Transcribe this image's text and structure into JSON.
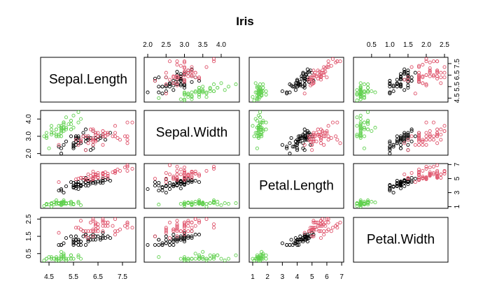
{
  "chart_data": {
    "type": "scatter",
    "title": "Iris",
    "variables": [
      "Sepal.Length",
      "Sepal.Width",
      "Petal.Length",
      "Petal.Width"
    ],
    "ranges": [
      [
        4.3,
        7.9
      ],
      [
        2.0,
        4.4
      ],
      [
        1.0,
        6.9
      ],
      [
        0.1,
        2.5
      ]
    ],
    "ticks": [
      [
        "4.5",
        "5.5",
        "6.5",
        "7.5"
      ],
      [
        "2.0",
        "2.5",
        "3.0",
        "3.5",
        "4.0"
      ],
      [
        "1",
        "2",
        "3",
        "4",
        "5",
        "6",
        "7"
      ],
      [
        "0.5",
        "1.0",
        "1.5",
        "2.0",
        "2.5"
      ]
    ],
    "left_ticks": [
      [
        "2.0",
        "3.0",
        "4.0"
      ],
      [
        "0.5",
        "1.5",
        "2.5"
      ]
    ],
    "right_ticks": [
      [
        "4.5",
        "5.5",
        "6.5",
        "7.5"
      ],
      [
        "1",
        "3",
        "5",
        "7"
      ]
    ],
    "series_colors": [
      "#000000",
      "#DF536B",
      "#61D04F"
    ],
    "series": [
      {
        "values": [
          [
            7.0,
            3.2,
            4.7,
            1.4
          ],
          [
            6.4,
            3.2,
            4.5,
            1.5
          ],
          [
            6.9,
            3.1,
            4.9,
            1.5
          ],
          [
            5.5,
            2.3,
            4.0,
            1.3
          ],
          [
            6.5,
            2.8,
            4.6,
            1.5
          ],
          [
            5.7,
            2.8,
            4.5,
            1.3
          ],
          [
            6.3,
            3.3,
            4.7,
            1.6
          ],
          [
            4.9,
            2.4,
            3.3,
            1.0
          ],
          [
            6.6,
            2.9,
            4.6,
            1.3
          ],
          [
            5.2,
            2.7,
            3.9,
            1.4
          ],
          [
            5.0,
            2.0,
            3.5,
            1.0
          ],
          [
            5.9,
            3.0,
            4.2,
            1.5
          ],
          [
            6.0,
            2.2,
            4.0,
            1.0
          ],
          [
            6.1,
            2.9,
            4.7,
            1.4
          ],
          [
            5.6,
            2.9,
            3.6,
            1.3
          ],
          [
            6.7,
            3.1,
            4.4,
            1.4
          ],
          [
            5.6,
            3.0,
            4.5,
            1.5
          ],
          [
            5.8,
            2.7,
            4.1,
            1.0
          ],
          [
            6.2,
            2.2,
            4.5,
            1.5
          ],
          [
            5.6,
            2.5,
            3.9,
            1.1
          ],
          [
            5.9,
            3.2,
            4.8,
            1.8
          ],
          [
            6.1,
            2.8,
            4.0,
            1.3
          ],
          [
            6.3,
            2.5,
            4.9,
            1.5
          ],
          [
            6.1,
            2.8,
            4.7,
            1.2
          ],
          [
            6.4,
            2.9,
            4.3,
            1.3
          ],
          [
            6.6,
            3.0,
            4.4,
            1.4
          ],
          [
            6.8,
            2.8,
            4.8,
            1.4
          ],
          [
            6.7,
            3.0,
            5.0,
            1.7
          ],
          [
            6.0,
            2.9,
            4.5,
            1.5
          ],
          [
            5.7,
            2.6,
            3.5,
            1.0
          ],
          [
            5.5,
            2.4,
            3.8,
            1.1
          ],
          [
            5.5,
            2.4,
            3.7,
            1.0
          ],
          [
            5.8,
            2.7,
            3.9,
            1.2
          ],
          [
            6.0,
            2.7,
            5.1,
            1.6
          ],
          [
            5.4,
            3.0,
            4.5,
            1.5
          ],
          [
            6.0,
            3.4,
            4.5,
            1.6
          ],
          [
            6.7,
            3.1,
            4.7,
            1.5
          ],
          [
            6.3,
            2.3,
            4.4,
            1.3
          ],
          [
            5.6,
            3.0,
            4.1,
            1.3
          ],
          [
            5.5,
            2.5,
            4.0,
            1.3
          ],
          [
            5.5,
            2.6,
            4.4,
            1.2
          ],
          [
            6.1,
            3.0,
            4.6,
            1.4
          ],
          [
            5.8,
            2.6,
            4.0,
            1.2
          ],
          [
            5.0,
            2.3,
            3.3,
            1.0
          ],
          [
            5.6,
            2.7,
            4.2,
            1.3
          ],
          [
            5.7,
            3.0,
            4.2,
            1.2
          ],
          [
            5.7,
            2.9,
            4.2,
            1.3
          ],
          [
            6.2,
            2.9,
            4.3,
            1.3
          ],
          [
            5.1,
            2.5,
            3.0,
            1.1
          ],
          [
            5.7,
            2.8,
            4.1,
            1.3
          ]
        ]
      },
      {
        "values": [
          [
            6.3,
            3.3,
            6.0,
            2.5
          ],
          [
            5.8,
            2.7,
            5.1,
            1.9
          ],
          [
            7.1,
            3.0,
            5.9,
            2.1
          ],
          [
            6.3,
            2.9,
            5.6,
            1.8
          ],
          [
            6.5,
            3.0,
            5.8,
            2.2
          ],
          [
            7.6,
            3.0,
            6.6,
            2.1
          ],
          [
            4.9,
            2.5,
            4.5,
            1.7
          ],
          [
            7.3,
            2.9,
            6.3,
            1.8
          ],
          [
            6.7,
            2.5,
            5.8,
            1.8
          ],
          [
            7.2,
            3.6,
            6.1,
            2.5
          ],
          [
            6.5,
            3.2,
            5.1,
            2.0
          ],
          [
            6.4,
            2.7,
            5.3,
            1.9
          ],
          [
            6.8,
            3.0,
            5.5,
            2.1
          ],
          [
            5.7,
            2.5,
            5.0,
            2.0
          ],
          [
            5.8,
            2.8,
            5.1,
            2.4
          ],
          [
            6.4,
            3.2,
            5.3,
            2.3
          ],
          [
            6.5,
            3.0,
            5.5,
            1.8
          ],
          [
            7.7,
            3.8,
            6.7,
            2.2
          ],
          [
            7.7,
            2.6,
            6.9,
            2.3
          ],
          [
            6.0,
            2.2,
            5.0,
            1.5
          ],
          [
            6.9,
            3.2,
            5.7,
            2.3
          ],
          [
            5.6,
            2.8,
            4.9,
            2.0
          ],
          [
            7.7,
            2.8,
            6.7,
            2.0
          ],
          [
            6.3,
            2.7,
            4.9,
            1.8
          ],
          [
            6.7,
            3.3,
            5.7,
            2.1
          ],
          [
            7.2,
            3.2,
            6.0,
            1.8
          ],
          [
            6.2,
            2.8,
            4.8,
            1.8
          ],
          [
            6.1,
            3.0,
            4.9,
            1.8
          ],
          [
            6.4,
            2.8,
            5.6,
            2.1
          ],
          [
            7.2,
            3.0,
            5.8,
            1.6
          ],
          [
            7.4,
            2.8,
            6.1,
            1.9
          ],
          [
            7.9,
            3.8,
            6.4,
            2.0
          ],
          [
            6.4,
            2.8,
            5.6,
            2.2
          ],
          [
            6.3,
            2.8,
            5.1,
            1.5
          ],
          [
            6.1,
            2.6,
            5.6,
            1.4
          ],
          [
            7.7,
            3.0,
            6.1,
            2.3
          ],
          [
            6.3,
            3.4,
            5.6,
            2.4
          ],
          [
            6.4,
            3.1,
            5.5,
            1.8
          ],
          [
            6.0,
            3.0,
            4.8,
            1.8
          ],
          [
            6.9,
            3.1,
            5.4,
            2.1
          ],
          [
            6.7,
            3.1,
            5.6,
            2.4
          ],
          [
            6.9,
            3.1,
            5.1,
            2.3
          ],
          [
            5.8,
            2.7,
            5.1,
            1.9
          ],
          [
            6.8,
            3.2,
            5.9,
            2.3
          ],
          [
            6.7,
            3.3,
            5.7,
            2.5
          ],
          [
            6.7,
            3.0,
            5.2,
            2.3
          ],
          [
            6.3,
            2.5,
            5.0,
            1.9
          ],
          [
            6.5,
            3.0,
            5.2,
            2.0
          ],
          [
            6.2,
            3.4,
            5.4,
            2.3
          ],
          [
            5.9,
            3.0,
            5.1,
            1.8
          ]
        ]
      },
      {
        "values": [
          [
            5.1,
            3.5,
            1.4,
            0.2
          ],
          [
            4.9,
            3.0,
            1.4,
            0.2
          ],
          [
            4.7,
            3.2,
            1.3,
            0.2
          ],
          [
            4.6,
            3.1,
            1.5,
            0.2
          ],
          [
            5.0,
            3.6,
            1.4,
            0.2
          ],
          [
            5.4,
            3.9,
            1.7,
            0.4
          ],
          [
            4.6,
            3.4,
            1.4,
            0.3
          ],
          [
            5.0,
            3.4,
            1.5,
            0.2
          ],
          [
            4.4,
            2.9,
            1.4,
            0.2
          ],
          [
            4.9,
            3.1,
            1.5,
            0.1
          ],
          [
            5.4,
            3.7,
            1.5,
            0.2
          ],
          [
            4.8,
            3.4,
            1.6,
            0.2
          ],
          [
            4.8,
            3.0,
            1.4,
            0.1
          ],
          [
            4.3,
            3.0,
            1.1,
            0.1
          ],
          [
            5.8,
            4.0,
            1.2,
            0.2
          ],
          [
            5.7,
            4.4,
            1.5,
            0.4
          ],
          [
            5.4,
            3.9,
            1.3,
            0.4
          ],
          [
            5.1,
            3.5,
            1.4,
            0.3
          ],
          [
            5.7,
            3.8,
            1.7,
            0.3
          ],
          [
            5.1,
            3.8,
            1.5,
            0.3
          ],
          [
            5.4,
            3.4,
            1.7,
            0.2
          ],
          [
            5.1,
            3.7,
            1.5,
            0.4
          ],
          [
            4.6,
            3.6,
            1.0,
            0.2
          ],
          [
            5.1,
            3.3,
            1.7,
            0.5
          ],
          [
            4.8,
            3.4,
            1.9,
            0.2
          ],
          [
            5.0,
            3.0,
            1.6,
            0.2
          ],
          [
            5.0,
            3.4,
            1.6,
            0.4
          ],
          [
            5.2,
            3.5,
            1.5,
            0.2
          ],
          [
            5.2,
            3.4,
            1.4,
            0.2
          ],
          [
            4.7,
            3.2,
            1.6,
            0.2
          ],
          [
            4.8,
            3.1,
            1.6,
            0.2
          ],
          [
            5.4,
            3.4,
            1.5,
            0.4
          ],
          [
            5.2,
            4.1,
            1.5,
            0.1
          ],
          [
            5.5,
            4.2,
            1.4,
            0.2
          ],
          [
            4.9,
            3.1,
            1.5,
            0.2
          ],
          [
            5.0,
            3.2,
            1.2,
            0.2
          ],
          [
            5.5,
            3.5,
            1.3,
            0.2
          ],
          [
            4.9,
            3.6,
            1.4,
            0.1
          ],
          [
            4.4,
            3.0,
            1.3,
            0.2
          ],
          [
            5.1,
            3.4,
            1.5,
            0.2
          ],
          [
            5.0,
            3.5,
            1.3,
            0.3
          ],
          [
            4.5,
            2.3,
            1.3,
            0.3
          ],
          [
            4.4,
            3.2,
            1.3,
            0.2
          ],
          [
            5.0,
            3.5,
            1.6,
            0.6
          ],
          [
            5.1,
            3.8,
            1.9,
            0.4
          ],
          [
            4.8,
            3.0,
            1.4,
            0.3
          ],
          [
            5.1,
            3.8,
            1.6,
            0.2
          ],
          [
            4.6,
            3.2,
            1.4,
            0.2
          ],
          [
            5.3,
            3.7,
            1.5,
            0.2
          ],
          [
            5.0,
            3.3,
            1.4,
            0.2
          ]
        ]
      }
    ]
  }
}
